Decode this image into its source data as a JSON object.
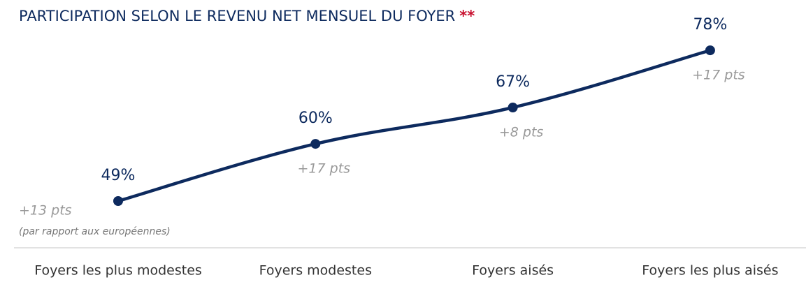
{
  "chart_data": {
    "type": "line",
    "title": "PARTICIPATION SELON LE REVENU NET MENSUEL DU FOYER",
    "title_suffix": "**",
    "categories": [
      "Foyers les plus modestes",
      "Foyers modestes",
      "Foyers aisés",
      "Foyers les plus aisés"
    ],
    "values": [
      49,
      60,
      67,
      78
    ],
    "value_labels": [
      "49%",
      "60%",
      "67%",
      "78%"
    ],
    "annotations": [
      "+13 pts",
      "+17 pts",
      "+8 pts",
      "+17 pts"
    ],
    "annotation_note": "(par rapport aux européennes)",
    "color": "#0d2a5e",
    "ylim": [
      40,
      85
    ]
  }
}
